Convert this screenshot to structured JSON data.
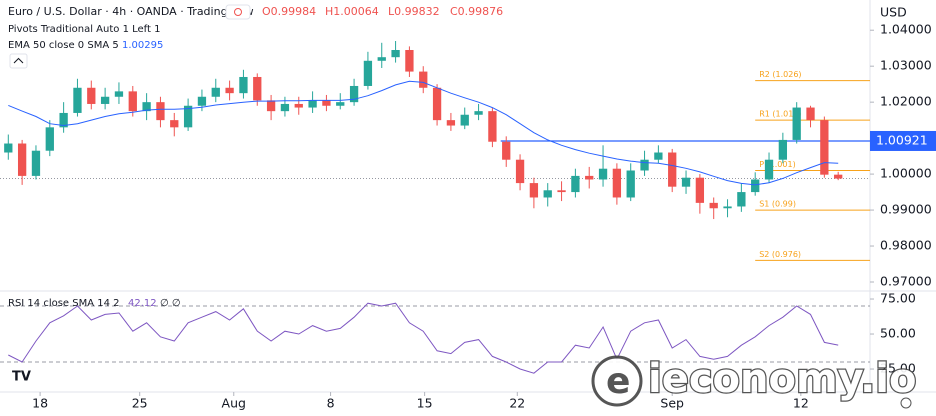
{
  "header": {
    "symbol": "Euro / U.S. Dollar · 4h · OANDA · TradingView",
    "ohlc": [
      "O0.99984",
      "H1.00064",
      "L0.99832",
      "C0.99876"
    ],
    "pivots": "Pivots Traditional Auto 1 Left 1",
    "ema": "EMA 50 close 0 SMA 5",
    "ema_value": "1.00295"
  },
  "watermark": "ieconomy.io",
  "chart_data": [
    {
      "type": "candlestick",
      "currency": "USD",
      "up_color": "#26a69a",
      "down_color": "#ef5350",
      "xlim": [
        -0.6,
        62.3
      ],
      "ylim": [
        0.9675,
        1.0484
      ],
      "xticks": [
        {
          "value": 2.3,
          "label": "18"
        },
        {
          "value": 9.5,
          "label": "25"
        },
        {
          "value": 16.3,
          "label": "Aug"
        },
        {
          "value": 23.3,
          "label": "8"
        },
        {
          "value": 30.1,
          "label": "15"
        },
        {
          "value": 36.8,
          "label": "22"
        },
        {
          "value": 48,
          "label": "Sep"
        },
        {
          "value": 57.3,
          "label": "12"
        }
      ],
      "yticks": [
        {
          "value": 1.04,
          "label": "1.04000"
        },
        {
          "value": 1.03,
          "label": "1.03000"
        },
        {
          "value": 1.02,
          "label": "1.02000"
        },
        {
          "value": 1.0,
          "label": "1.00000"
        },
        {
          "value": 0.99,
          "label": "0.99000"
        },
        {
          "value": 0.98,
          "label": "0.98000"
        },
        {
          "value": 0.97,
          "label": "0.97000"
        }
      ],
      "open": [
        1.006,
        1.0085,
        0.9995,
        1.0065,
        1.013,
        1.017,
        1.024,
        1.0195,
        1.0215,
        1.023,
        1.0175,
        1.02,
        1.015,
        1.013,
        1.019,
        1.0215,
        1.024,
        1.0225,
        1.027,
        1.0205,
        1.0175,
        1.0195,
        1.0185,
        1.0205,
        1.019,
        1.02,
        1.0245,
        1.0315,
        1.0325,
        1.0345,
        1.0285,
        1.024,
        1.015,
        1.0135,
        1.0165,
        1.0175,
        1.009,
        1.004,
        0.9975,
        0.9935,
        0.9955,
        0.995,
        0.9995,
        0.9985,
        1.0015,
        0.9935,
        1.001,
        1.004,
        1.006,
        0.9965,
        0.999,
        0.992,
        0.9905,
        0.991,
        0.995,
        0.9985,
        1.004,
        1.0095,
        1.0185,
        1.015,
        0.99984
      ],
      "high": [
        1.011,
        1.0095,
        1.008,
        1.015,
        1.02,
        1.0265,
        1.026,
        1.024,
        1.0255,
        1.0245,
        1.0225,
        1.0215,
        1.017,
        1.021,
        1.0235,
        1.0265,
        1.026,
        1.029,
        1.028,
        1.022,
        1.0215,
        1.0215,
        1.023,
        1.022,
        1.0225,
        1.0265,
        1.034,
        1.0365,
        1.037,
        1.0355,
        1.03,
        1.025,
        1.017,
        1.0185,
        1.0195,
        1.0185,
        1.0105,
        1.0055,
        0.999,
        0.9975,
        0.998,
        1.0015,
        1.002,
        1.008,
        1.003,
        1.003,
        1.0065,
        1.008,
        1.007,
        1.001,
        1.0,
        0.9935,
        0.993,
        0.9975,
        1.0005,
        1.006,
        1.0115,
        1.02,
        1.019,
        1.016,
        1.00064
      ],
      "low": [
        1.004,
        0.997,
        0.9985,
        1.005,
        1.0115,
        1.016,
        1.018,
        1.018,
        1.0195,
        1.016,
        1.015,
        1.013,
        1.0105,
        1.012,
        1.0175,
        1.02,
        1.0205,
        1.021,
        1.019,
        1.015,
        1.016,
        1.0165,
        1.017,
        1.0175,
        1.018,
        1.019,
        1.0235,
        1.0295,
        1.031,
        1.027,
        1.0225,
        1.0135,
        1.012,
        1.0125,
        1.015,
        1.0075,
        1.002,
        0.9955,
        0.9905,
        0.991,
        0.9925,
        0.9935,
        0.996,
        0.9965,
        0.9915,
        0.9925,
        0.9995,
        1.003,
        0.995,
        0.9945,
        0.989,
        0.9875,
        0.988,
        0.9895,
        0.994,
        0.9975,
        1.003,
        1.0085,
        1.013,
        0.999,
        0.99832
      ],
      "close": [
        1.0085,
        0.9995,
        1.0065,
        1.013,
        1.017,
        1.024,
        1.0195,
        1.0215,
        1.023,
        1.0175,
        1.02,
        1.015,
        1.013,
        1.019,
        1.0215,
        1.024,
        1.0225,
        1.027,
        1.0205,
        1.0175,
        1.0195,
        1.0185,
        1.0205,
        1.019,
        1.02,
        1.0245,
        1.0315,
        1.0325,
        1.0345,
        1.0285,
        1.024,
        1.015,
        1.0135,
        1.0165,
        1.0175,
        1.009,
        1.004,
        0.9975,
        0.9935,
        0.9955,
        0.995,
        0.9995,
        0.9985,
        1.0015,
        0.9935,
        1.001,
        1.004,
        1.006,
        0.9965,
        0.999,
        0.992,
        0.9905,
        0.991,
        0.995,
        0.9985,
        1.004,
        1.0095,
        1.0185,
        1.015,
        0.99984,
        0.99876
      ],
      "ema": {
        "color": "#2962ff",
        "values": [
          1.0191,
          1.0175,
          1.016,
          1.014,
          1.0135,
          1.014,
          1.015,
          1.016,
          1.0168,
          1.0172,
          1.0178,
          1.018,
          1.018,
          1.0182,
          1.0186,
          1.0192,
          1.0196,
          1.02,
          1.0203,
          1.0203,
          1.0204,
          1.0204,
          1.0205,
          1.0205,
          1.0205,
          1.0208,
          1.0218,
          1.0232,
          1.0248,
          1.0258,
          1.0255,
          1.024,
          1.0225,
          1.0212,
          1.02,
          1.0185,
          1.0165,
          1.014,
          1.0115,
          1.0095,
          1.008,
          1.0068,
          1.0058,
          1.005,
          1.0042,
          1.0036,
          1.0032,
          1.003,
          1.0024,
          1.0016,
          1.0006,
          0.9994,
          0.9982,
          0.9974,
          0.997,
          0.9976,
          0.9988,
          1.0004,
          1.0018,
          1.0032,
          1.003
        ]
      },
      "pivots": [
        {
          "label": "R2 (1.026)",
          "value": 1.026
        },
        {
          "label": "R1 (1.015)",
          "value": 1.015
        },
        {
          "label": "P (1.001)",
          "value": 1.001
        },
        {
          "label": "S1 (0.99)",
          "value": 0.99
        },
        {
          "label": "S2 (0.976)",
          "value": 0.976
        }
      ],
      "pivot_color": "#f7a21b",
      "pivot_start": 54,
      "hline": {
        "value": 1.00921,
        "label": "1.00921",
        "color": "#2962ff",
        "start": 35.6
      }
    },
    {
      "type": "line",
      "title": "RSI 14 close SMA 14 2",
      "header_value": "42.12",
      "header_extra": "∅ ∅",
      "ylim": [
        8.6,
        79.3
      ],
      "yticks": [
        {
          "value": 75,
          "label": "75.00"
        },
        {
          "value": 50,
          "label": "50.00"
        },
        {
          "value": 25,
          "label": "25.00"
        }
      ],
      "bands": [
        70,
        30
      ],
      "series": [
        {
          "color": "#7e57c2",
          "values": [
            35,
            30,
            45,
            58,
            63,
            70,
            60,
            64,
            65,
            52,
            58,
            48,
            45,
            58,
            62,
            66,
            60,
            68,
            52,
            45,
            52,
            50,
            56,
            52,
            54,
            62,
            72,
            70,
            72,
            58,
            52,
            38,
            36,
            44,
            46,
            34,
            30,
            25,
            22,
            30,
            30,
            42,
            40,
            55,
            32,
            52,
            58,
            60,
            40,
            46,
            34,
            32,
            34,
            42,
            48,
            56,
            62,
            70,
            64,
            44,
            42.12
          ]
        }
      ]
    }
  ]
}
